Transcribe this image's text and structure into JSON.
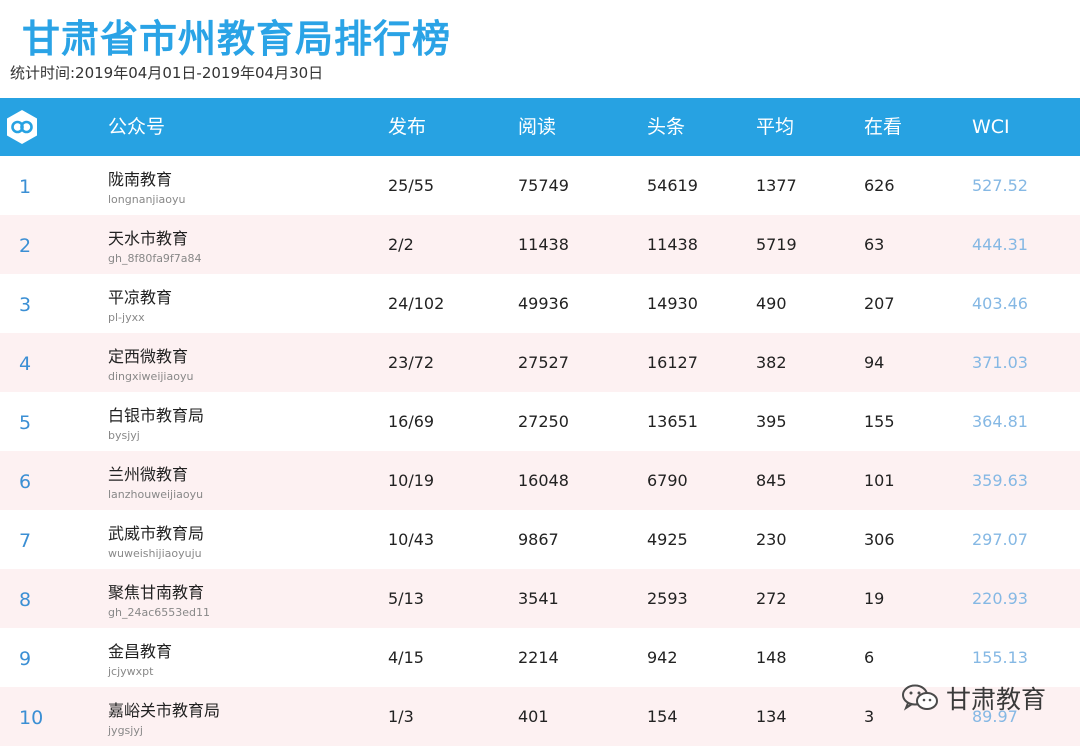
{
  "header": {
    "title": "甘肃省市州教育局排行榜",
    "period": "统计时间:2019年04月01日-2019年04月30日"
  },
  "columns": {
    "account": "公众号",
    "published": "发布",
    "reads": "阅读",
    "headline": "头条",
    "average": "平均",
    "watching": "在看",
    "wci": "WCI"
  },
  "rows": [
    {
      "rank": "1",
      "name": "陇南教育",
      "id": "longnanjiaoyu",
      "published": "25/55",
      "reads": "75749",
      "headline": "54619",
      "average": "1377",
      "watching": "626",
      "wci": "527.52"
    },
    {
      "rank": "2",
      "name": "天水市教育",
      "id": "gh_8f80fa9f7a84",
      "published": "2/2",
      "reads": "11438",
      "headline": "11438",
      "average": "5719",
      "watching": "63",
      "wci": "444.31"
    },
    {
      "rank": "3",
      "name": "平凉教育",
      "id": "pl-jyxx",
      "published": "24/102",
      "reads": "49936",
      "headline": "14930",
      "average": "490",
      "watching": "207",
      "wci": "403.46"
    },
    {
      "rank": "4",
      "name": "定西微教育",
      "id": "dingxiweijiaoyu",
      "published": "23/72",
      "reads": "27527",
      "headline": "16127",
      "average": "382",
      "watching": "94",
      "wci": "371.03"
    },
    {
      "rank": "5",
      "name": "白银市教育局",
      "id": "bysjyj",
      "published": "16/69",
      "reads": "27250",
      "headline": "13651",
      "average": "395",
      "watching": "155",
      "wci": "364.81"
    },
    {
      "rank": "6",
      "name": "兰州微教育",
      "id": "lanzhouweijiaoyu",
      "published": "10/19",
      "reads": "16048",
      "headline": "6790",
      "average": "845",
      "watching": "101",
      "wci": "359.63"
    },
    {
      "rank": "7",
      "name": "武威市教育局",
      "id": "wuweishijiaoyuju",
      "published": "10/43",
      "reads": "9867",
      "headline": "4925",
      "average": "230",
      "watching": "306",
      "wci": "297.07"
    },
    {
      "rank": "8",
      "name": "聚焦甘南教育",
      "id": "gh_24ac6553ed11",
      "published": "5/13",
      "reads": "3541",
      "headline": "2593",
      "average": "272",
      "watching": "19",
      "wci": "220.93"
    },
    {
      "rank": "9",
      "name": "金昌教育",
      "id": "jcjywxpt",
      "published": "4/15",
      "reads": "2214",
      "headline": "942",
      "average": "148",
      "watching": "6",
      "wci": "155.13"
    },
    {
      "rank": "10",
      "name": "嘉峪关市教育局",
      "id": "jygsjyj",
      "published": "1/3",
      "reads": "401",
      "headline": "154",
      "average": "134",
      "watching": "3",
      "wci": "89.97"
    }
  ],
  "watermark": {
    "text": "甘肃教育",
    "icon": "wechat-icon"
  },
  "colors": {
    "title": "#2aa3e6",
    "header_bar": "#27a2e2",
    "rank": "#3b8fd4",
    "wci": "#85b8e4",
    "alt_row": "#fdf1f2"
  }
}
